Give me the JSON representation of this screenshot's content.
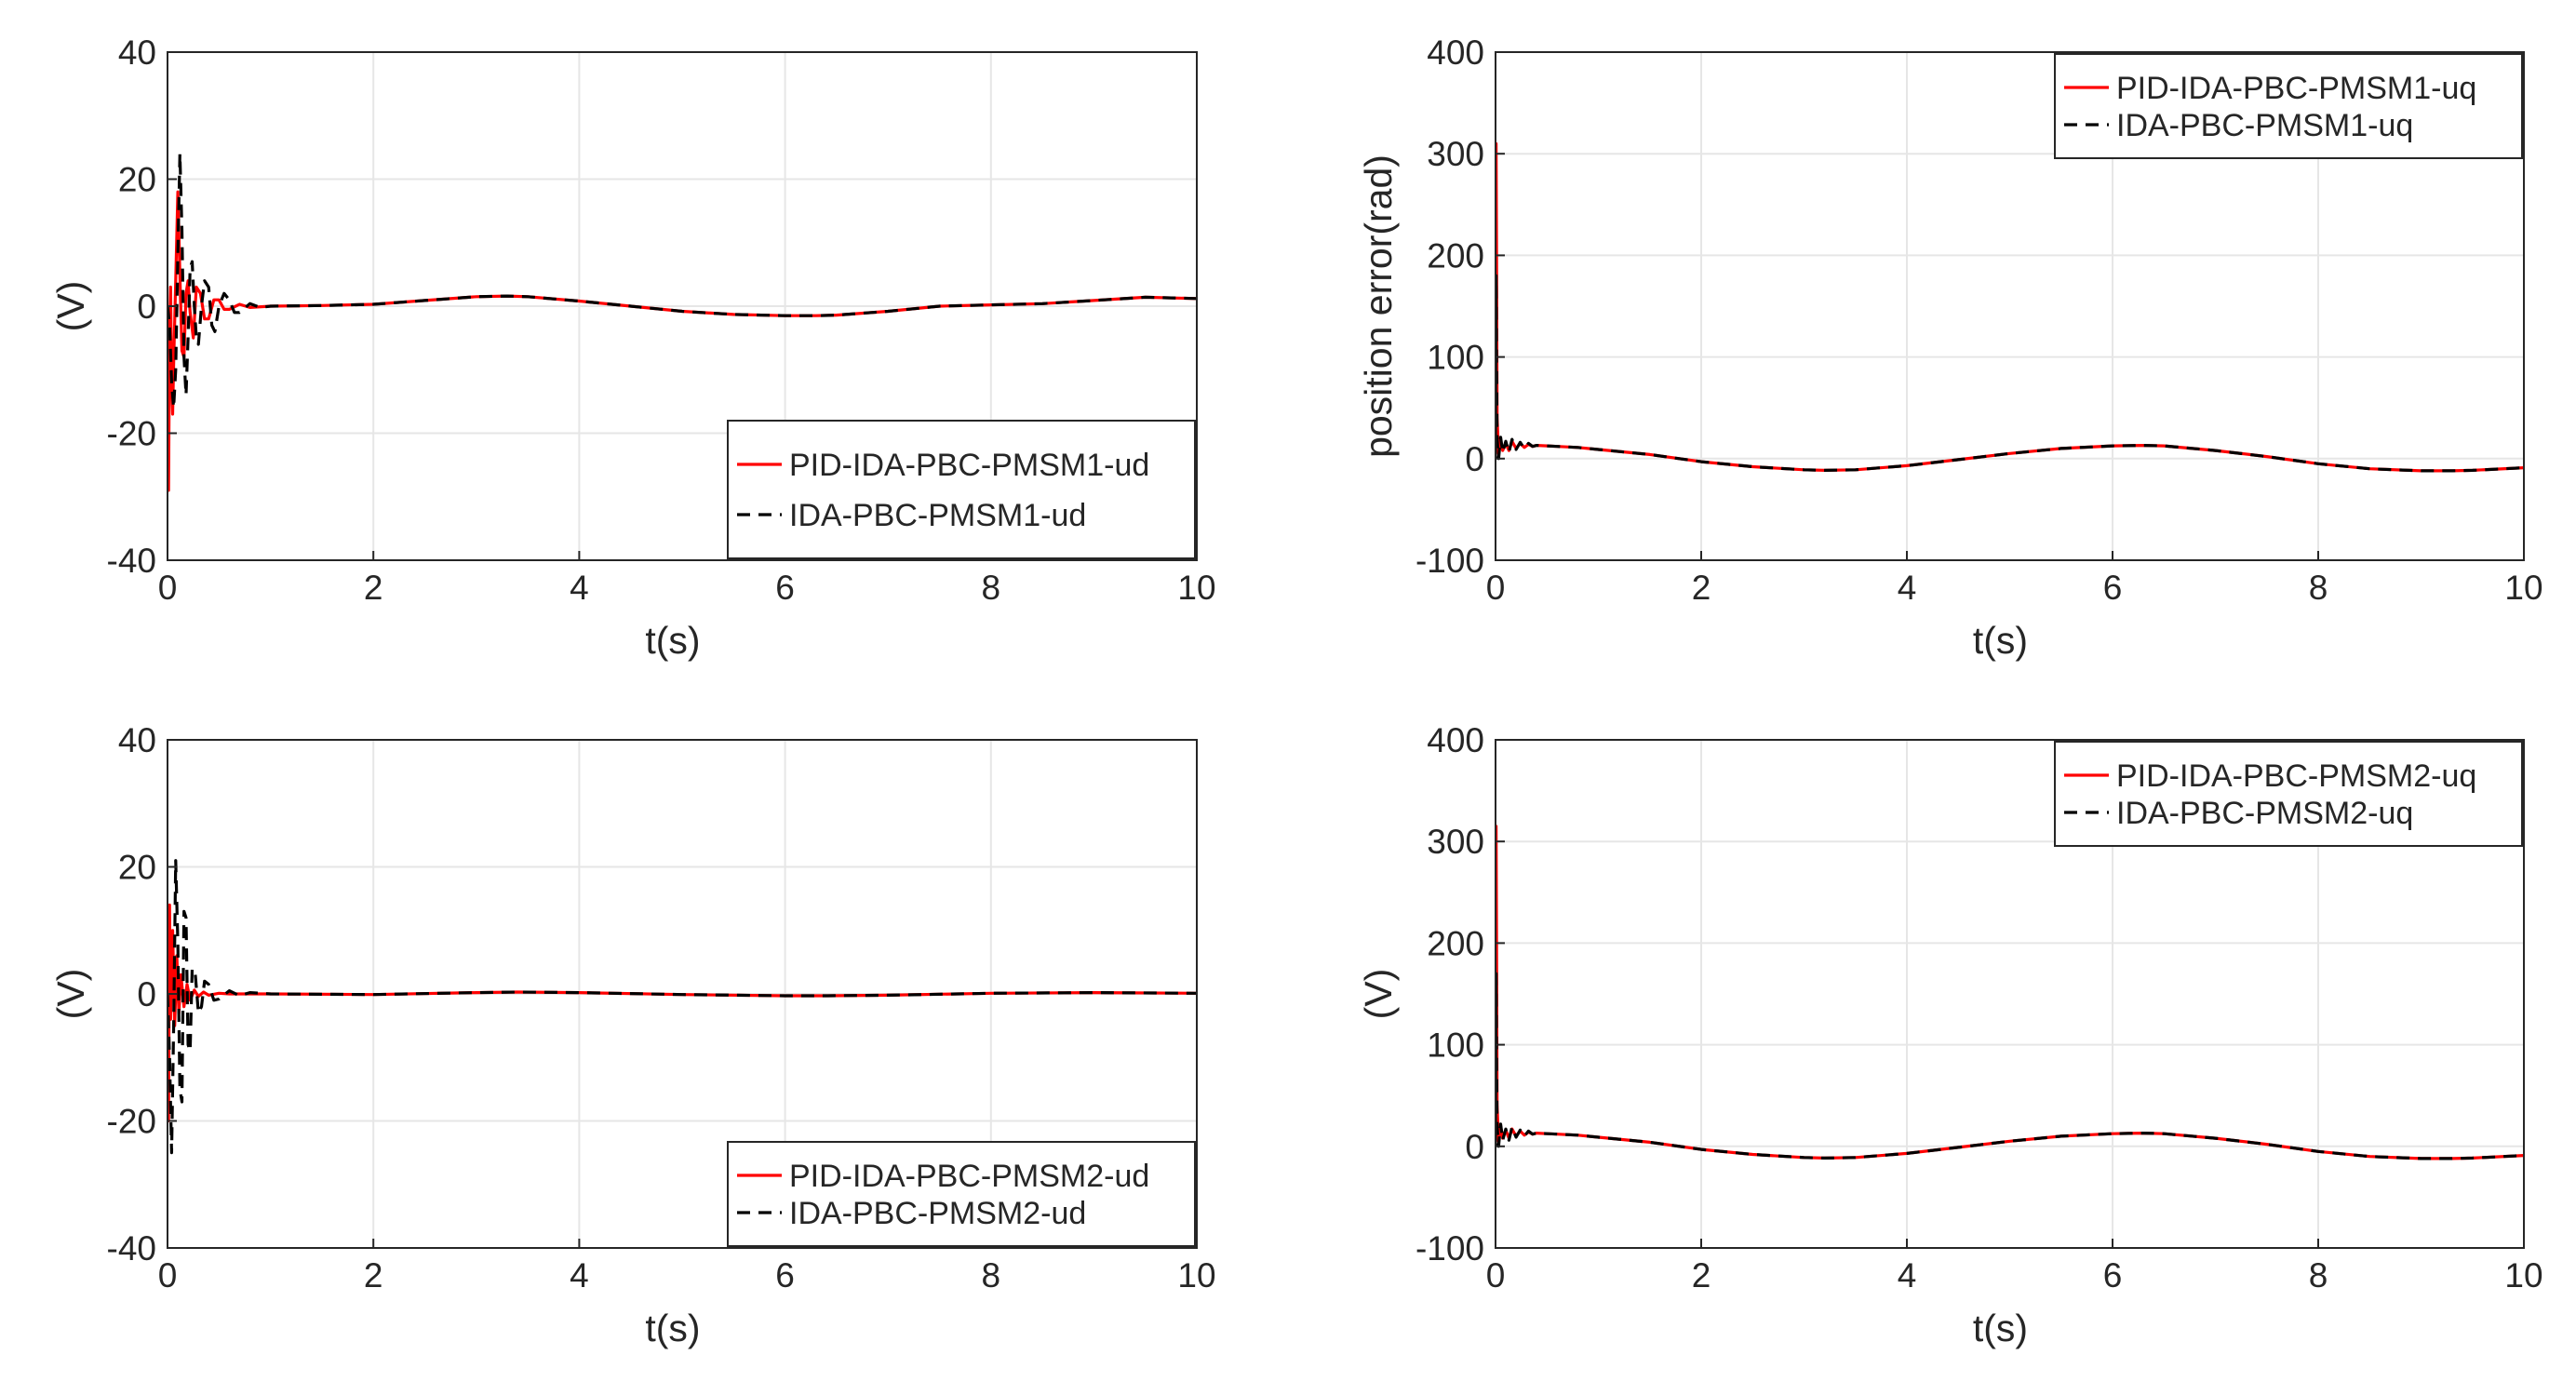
{
  "figure": {
    "layout": "2x2 subplots"
  },
  "colors": {
    "red_series": "#ff0000",
    "black_series": "#000000",
    "grid": "#e6e6e6",
    "axis": "#262626"
  },
  "chart_data": [
    {
      "type": "line",
      "xlabel": "t(s)",
      "ylabel": "(V)",
      "xlim": [
        0,
        10
      ],
      "ylim": [
        -40,
        40
      ],
      "xticks": [
        0,
        2,
        4,
        6,
        8,
        10
      ],
      "yticks": [
        -40,
        -20,
        0,
        20,
        40
      ],
      "grid": true,
      "legend_position": "lower-right",
      "series": [
        {
          "name": "PID-IDA-PBC-PMSM1-ud",
          "color": "#ff0000",
          "style": "solid",
          "x": [
            0,
            0.01,
            0.02,
            0.03,
            0.04,
            0.05,
            0.06,
            0.08,
            0.1,
            0.12,
            0.14,
            0.16,
            0.18,
            0.2,
            0.22,
            0.25,
            0.28,
            0.32,
            0.36,
            0.4,
            0.45,
            0.5,
            0.55,
            0.6,
            0.7,
            0.8,
            1,
            1.5,
            2,
            2.5,
            3,
            3.3,
            3.5,
            4,
            4.5,
            5,
            5.5,
            6,
            6.3,
            6.5,
            7,
            7.5,
            8,
            8.5,
            9,
            9.5,
            10
          ],
          "y": [
            0,
            -29,
            -5,
            3,
            -12,
            -17,
            -9,
            4,
            18,
            5,
            -7,
            -8,
            2,
            4,
            -1,
            -5,
            3,
            2,
            -2,
            -2,
            1,
            1,
            -0.5,
            -0.5,
            0.3,
            -0.2,
            0,
            0.1,
            0.3,
            0.9,
            1.5,
            1.6,
            1.5,
            0.8,
            0,
            -0.8,
            -1.3,
            -1.5,
            -1.5,
            -1.4,
            -0.8,
            0,
            0.2,
            0.4,
            0.9,
            1.4,
            1.2
          ]
        },
        {
          "name": "IDA-PBC-PMSM1-ud",
          "color": "#000000",
          "style": "dashed",
          "x": [
            0,
            0.02,
            0.04,
            0.06,
            0.08,
            0.1,
            0.12,
            0.14,
            0.16,
            0.18,
            0.2,
            0.22,
            0.24,
            0.26,
            0.28,
            0.3,
            0.33,
            0.36,
            0.4,
            0.43,
            0.46,
            0.5,
            0.55,
            0.6,
            0.65,
            0.7,
            0.8,
            0.9,
            1,
            1.5,
            2,
            2.5,
            3,
            3.3,
            3.5,
            4,
            4.5,
            5,
            5.5,
            6,
            6.3,
            6.5,
            7,
            7.5,
            8,
            8.5,
            9,
            9.5,
            10
          ],
          "y": [
            0,
            -3,
            -12,
            -16,
            -10,
            8,
            24,
            12,
            -8,
            -14,
            -5,
            6,
            7,
            0,
            -5,
            -6,
            0,
            4,
            3,
            -3,
            -4,
            0,
            2,
            1,
            -1,
            -1,
            0.4,
            -0.2,
            0,
            0.1,
            0.3,
            0.9,
            1.5,
            1.6,
            1.5,
            0.8,
            0,
            -0.8,
            -1.3,
            -1.5,
            -1.5,
            -1.4,
            -0.8,
            0,
            0.2,
            0.4,
            0.9,
            1.4,
            1.2
          ]
        }
      ]
    },
    {
      "type": "line",
      "xlabel": "t(s)",
      "ylabel": "position error(rad)",
      "xlim": [
        0,
        10
      ],
      "ylim": [
        -100,
        400
      ],
      "xticks": [
        0,
        2,
        4,
        6,
        8,
        10
      ],
      "yticks": [
        -100,
        0,
        100,
        200,
        300,
        400
      ],
      "grid": true,
      "legend_position": "top-right",
      "series": [
        {
          "name": "PID-IDA-PBC-PMSM1-uq",
          "color": "#ff0000",
          "style": "solid",
          "x": [
            0,
            0.005,
            0.01,
            0.015,
            0.03,
            0.05,
            0.07,
            0.1,
            0.13,
            0.16,
            0.2,
            0.24,
            0.28,
            0.32,
            0.36,
            0.4,
            0.5,
            0.6,
            0.8,
            1,
            1.5,
            2,
            2.5,
            3,
            3.2,
            3.5,
            4,
            4.5,
            5,
            5.5,
            6,
            6.3,
            6.5,
            7,
            7.5,
            8,
            8.5,
            9,
            9.3,
            9.5,
            10
          ],
          "y": [
            0,
            310,
            200,
            40,
            5,
            18,
            8,
            15,
            8,
            17,
            10,
            15,
            11,
            14,
            12,
            13,
            12.5,
            12,
            11,
            9,
            4,
            -3,
            -8,
            -11,
            -11.5,
            -11,
            -7,
            -1,
            5,
            10,
            12.5,
            13,
            12.5,
            8,
            2,
            -5,
            -10,
            -12,
            -12,
            -11.5,
            -9
          ]
        },
        {
          "name": "IDA-PBC-PMSM1-uq",
          "color": "#000000",
          "style": "dashed",
          "x": [
            0,
            0.005,
            0.01,
            0.015,
            0.03,
            0.05,
            0.07,
            0.1,
            0.13,
            0.16,
            0.2,
            0.24,
            0.28,
            0.32,
            0.36,
            0.4,
            0.5,
            0.6,
            0.8,
            1,
            1.5,
            2,
            2.5,
            3,
            3.2,
            3.5,
            4,
            4.5,
            5,
            5.5,
            6,
            6.3,
            6.5,
            7,
            7.5,
            8,
            8.5,
            9,
            9.3,
            9.5,
            10
          ],
          "y": [
            0,
            180,
            90,
            20,
            0,
            21,
            6,
            17,
            6,
            19,
            9,
            16,
            10,
            15,
            12,
            13,
            12.5,
            12,
            11,
            9,
            4,
            -3,
            -8,
            -11,
            -11.5,
            -11,
            -7,
            -1,
            5,
            10,
            12.5,
            13,
            12.5,
            8,
            2,
            -5,
            -10,
            -12,
            -12,
            -11.5,
            -9
          ]
        }
      ]
    },
    {
      "type": "line",
      "xlabel": "t(s)",
      "ylabel": "(V)",
      "xlim": [
        0,
        10
      ],
      "ylim": [
        -40,
        40
      ],
      "xticks": [
        0,
        2,
        4,
        6,
        8,
        10
      ],
      "yticks": [
        -40,
        -20,
        0,
        20,
        40
      ],
      "grid": true,
      "legend_position": "lower-right",
      "series": [
        {
          "name": "PID-IDA-PBC-PMSM2-ud",
          "color": "#ff0000",
          "style": "solid",
          "x": [
            0,
            0.01,
            0.02,
            0.03,
            0.05,
            0.07,
            0.09,
            0.11,
            0.13,
            0.16,
            0.19,
            0.22,
            0.26,
            0.3,
            0.35,
            0.4,
            0.5,
            0.6,
            0.8,
            1,
            2,
            3,
            3.4,
            4,
            5,
            6,
            6.4,
            7,
            8,
            9,
            10
          ],
          "y": [
            0,
            -20,
            14,
            -4,
            10,
            -5,
            6,
            -3,
            3,
            -2,
            1.5,
            -1,
            0.6,
            -0.4,
            0.3,
            -0.2,
            0.1,
            0,
            0,
            0,
            -0.1,
            0.2,
            0.3,
            0.2,
            -0.1,
            -0.3,
            -0.3,
            -0.2,
            0.1,
            0.2,
            0.1
          ]
        },
        {
          "name": "IDA-PBC-PMSM2-ud",
          "color": "#000000",
          "style": "dashed",
          "x": [
            0,
            0.02,
            0.04,
            0.06,
            0.08,
            0.1,
            0.12,
            0.14,
            0.16,
            0.18,
            0.2,
            0.22,
            0.24,
            0.27,
            0.3,
            0.33,
            0.36,
            0.4,
            0.45,
            0.5,
            0.6,
            0.7,
            0.8,
            1,
            2,
            3,
            3.4,
            4,
            5,
            6,
            6.4,
            7,
            8,
            9,
            10
          ],
          "y": [
            0,
            -10,
            -25,
            -5,
            21,
            8,
            -15,
            -17,
            13,
            12,
            -8,
            -9,
            4,
            3,
            -3,
            -2,
            2,
            1.5,
            -1,
            -0.8,
            0.5,
            -0.3,
            0.2,
            0,
            -0.1,
            0.2,
            0.3,
            0.2,
            -0.1,
            -0.3,
            -0.3,
            -0.2,
            0.1,
            0.2,
            0.1
          ]
        }
      ]
    },
    {
      "type": "line",
      "xlabel": "t(s)",
      "ylabel": "(V)",
      "xlim": [
        0,
        10
      ],
      "ylim": [
        -100,
        400
      ],
      "xticks": [
        0,
        2,
        4,
        6,
        8,
        10
      ],
      "yticks": [
        -100,
        0,
        100,
        200,
        300,
        400
      ],
      "grid": true,
      "legend_position": "top-right",
      "series": [
        {
          "name": "PID-IDA-PBC-PMSM2-uq",
          "color": "#ff0000",
          "style": "solid",
          "x": [
            0,
            0.005,
            0.01,
            0.015,
            0.03,
            0.05,
            0.07,
            0.1,
            0.13,
            0.16,
            0.2,
            0.24,
            0.28,
            0.32,
            0.36,
            0.4,
            0.5,
            0.6,
            0.8,
            1,
            1.5,
            2,
            2.5,
            3,
            3.2,
            3.5,
            4,
            4.5,
            5,
            5.5,
            6,
            6.3,
            6.5,
            7,
            7.5,
            8,
            8.5,
            9,
            9.3,
            9.5,
            10
          ],
          "y": [
            0,
            315,
            200,
            40,
            5,
            20,
            8,
            16,
            8,
            17,
            10,
            15,
            11,
            14,
            12,
            13,
            12.5,
            12,
            11,
            9,
            4,
            -3,
            -8,
            -11,
            -11.5,
            -11,
            -7,
            -1,
            5,
            10,
            12.5,
            13,
            12.5,
            8,
            2,
            -5,
            -10,
            -12,
            -12,
            -11.5,
            -9
          ]
        },
        {
          "name": "IDA-PBC-PMSM2-uq",
          "color": "#000000",
          "style": "dashed",
          "x": [
            0,
            0.005,
            0.01,
            0.015,
            0.03,
            0.05,
            0.07,
            0.1,
            0.13,
            0.16,
            0.2,
            0.24,
            0.28,
            0.32,
            0.36,
            0.4,
            0.5,
            0.6,
            0.8,
            1,
            1.5,
            2,
            2.5,
            3,
            3.2,
            3.5,
            4,
            4.5,
            5,
            5.5,
            6,
            6.3,
            6.5,
            7,
            7.5,
            8,
            8.5,
            9,
            9.3,
            9.5,
            10
          ],
          "y": [
            0,
            170,
            80,
            20,
            0,
            22,
            6,
            17,
            6,
            19,
            9,
            16,
            10,
            15,
            12,
            13,
            12.5,
            12,
            11,
            9,
            4,
            -3,
            -8,
            -11,
            -11.5,
            -11,
            -7,
            -1,
            5,
            10,
            12.5,
            13,
            12.5,
            8,
            2,
            -5,
            -10,
            -12,
            -12,
            -11.5,
            -9
          ]
        }
      ]
    }
  ]
}
